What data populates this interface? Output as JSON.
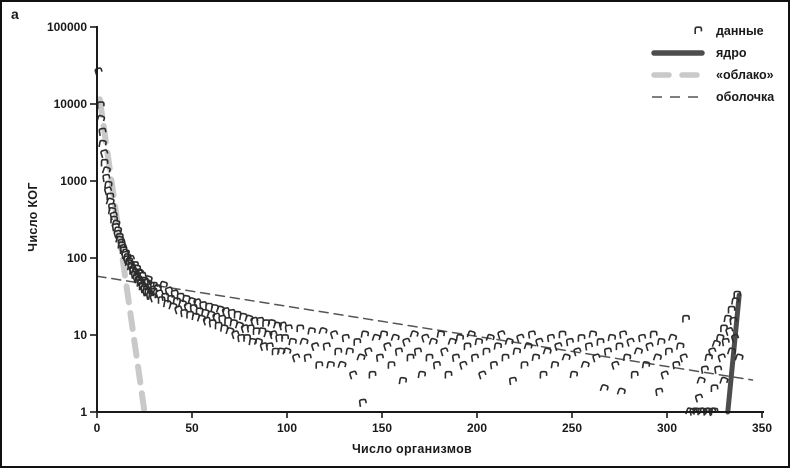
{
  "panel_label": "а",
  "legend": {
    "items": [
      {
        "label": "данные",
        "sample": "scatter-marker"
      },
      {
        "label": "ядро",
        "sample": "thick-solid-line"
      },
      {
        "label": "«облако»",
        "sample": "thick-dashed-line"
      },
      {
        "label": "оболочка",
        "sample": "thin-dashed-line"
      }
    ]
  },
  "chart_data": {
    "type": "scatter",
    "title": "",
    "xlabel": "Число организмов",
    "ylabel": "Число КОГ",
    "x_ticks": [
      0,
      50,
      100,
      150,
      200,
      250,
      300,
      350
    ],
    "y_ticks": [
      1,
      10,
      100,
      1000,
      10000,
      100000
    ],
    "xlim": [
      0,
      350
    ],
    "ylim": [
      1,
      100000
    ],
    "y_scale": "log",
    "grid": false,
    "legend_position": "top-right",
    "colors": {
      "marker": "#2d2d2d",
      "core": "#4d4d4d",
      "cloud": "#c9c9c9",
      "shell": "#555555",
      "axis": "#1a1a1a"
    },
    "series": [
      {
        "name": "данные",
        "type": "scatter",
        "points": [
          [
            1,
            26000
          ],
          [
            2,
            9500
          ],
          [
            2,
            6300
          ],
          [
            3,
            4300
          ],
          [
            3,
            3000
          ],
          [
            4,
            2250
          ],
          [
            4,
            1700
          ],
          [
            5,
            1350
          ],
          [
            5,
            1080
          ],
          [
            6,
            880
          ],
          [
            6,
            740
          ],
          [
            7,
            620
          ],
          [
            7,
            530
          ],
          [
            8,
            455
          ],
          [
            8,
            400
          ],
          [
            9,
            350
          ],
          [
            9,
            310
          ],
          [
            10,
            275
          ],
          [
            10,
            248
          ],
          [
            11,
            224
          ],
          [
            11,
            203
          ],
          [
            12,
            185
          ],
          [
            12,
            170
          ],
          [
            13,
            156
          ],
          [
            13,
            144
          ],
          [
            14,
            133
          ],
          [
            14,
            124
          ],
          [
            15,
            115
          ],
          [
            15,
            108
          ],
          [
            16,
            101
          ],
          [
            16,
            95
          ],
          [
            17,
            89
          ],
          [
            17,
            84
          ],
          [
            18,
            79
          ],
          [
            18,
            75
          ],
          [
            19,
            71
          ],
          [
            19,
            67
          ],
          [
            20,
            64
          ],
          [
            20,
            60
          ],
          [
            21,
            58
          ],
          [
            21,
            55
          ],
          [
            22,
            52
          ],
          [
            22,
            50
          ],
          [
            23,
            48
          ],
          [
            23,
            46
          ],
          [
            24,
            44
          ],
          [
            24,
            42
          ],
          [
            25,
            41
          ],
          [
            25,
            39
          ],
          [
            26,
            38
          ],
          [
            26,
            36
          ],
          [
            27,
            35
          ],
          [
            28,
            34
          ],
          [
            28,
            32
          ],
          [
            29,
            31
          ],
          [
            30,
            30
          ],
          [
            30,
            43
          ],
          [
            27,
            52
          ],
          [
            24,
            58
          ],
          [
            21,
            72
          ],
          [
            18,
            95
          ],
          [
            22,
            64
          ],
          [
            26,
            47
          ],
          [
            29,
            38
          ],
          [
            25,
            50
          ],
          [
            23,
            62
          ],
          [
            20,
            80
          ],
          [
            28,
            44
          ],
          [
            30,
            36
          ],
          [
            32,
            40
          ],
          [
            33,
            34
          ],
          [
            34,
            28
          ],
          [
            35,
            44
          ],
          [
            36,
            31
          ],
          [
            37,
            25
          ],
          [
            38,
            37
          ],
          [
            39,
            29
          ],
          [
            40,
            23
          ],
          [
            41,
            34
          ],
          [
            42,
            27
          ],
          [
            43,
            21
          ],
          [
            44,
            31
          ],
          [
            45,
            25
          ],
          [
            46,
            19
          ],
          [
            47,
            29
          ],
          [
            48,
            23
          ],
          [
            49,
            18
          ],
          [
            50,
            27
          ],
          [
            51,
            22
          ],
          [
            52,
            17
          ],
          [
            53,
            26
          ],
          [
            54,
            20
          ],
          [
            55,
            16
          ],
          [
            56,
            24
          ],
          [
            57,
            19
          ],
          [
            58,
            15
          ],
          [
            59,
            23
          ],
          [
            60,
            18
          ],
          [
            61,
            14
          ],
          [
            62,
            22
          ],
          [
            63,
            17
          ],
          [
            64,
            13
          ],
          [
            65,
            21
          ],
          [
            66,
            16
          ],
          [
            67,
            12
          ],
          [
            68,
            20
          ],
          [
            69,
            15
          ],
          [
            70,
            11
          ],
          [
            71,
            19
          ],
          [
            72,
            14
          ],
          [
            73,
            10
          ],
          [
            74,
            18
          ],
          [
            75,
            13
          ],
          [
            76,
            9
          ],
          [
            77,
            17
          ],
          [
            78,
            12
          ],
          [
            79,
            9
          ],
          [
            80,
            16
          ],
          [
            81,
            12
          ],
          [
            82,
            8
          ],
          [
            83,
            15
          ],
          [
            84,
            11
          ],
          [
            85,
            8
          ],
          [
            86,
            15
          ],
          [
            87,
            11
          ],
          [
            88,
            7
          ],
          [
            89,
            14
          ],
          [
            90,
            10
          ],
          [
            91,
            7
          ],
          [
            92,
            14
          ],
          [
            93,
            10
          ],
          [
            94,
            6
          ],
          [
            95,
            13
          ],
          [
            96,
            9
          ],
          [
            97,
            6
          ],
          [
            98,
            13
          ],
          [
            99,
            9
          ],
          [
            100,
            6
          ],
          [
            101,
            12
          ],
          [
            103,
            8
          ],
          [
            105,
            5
          ],
          [
            107,
            12
          ],
          [
            109,
            8
          ],
          [
            111,
            5
          ],
          [
            113,
            11
          ],
          [
            115,
            7
          ],
          [
            117,
            4
          ],
          [
            119,
            11
          ],
          [
            121,
            7
          ],
          [
            123,
            4
          ],
          [
            125,
            10
          ],
          [
            127,
            6
          ],
          [
            129,
            4
          ],
          [
            131,
            9
          ],
          [
            133,
            6
          ],
          [
            135,
            3
          ],
          [
            137,
            8
          ],
          [
            139,
            5
          ],
          [
            140,
            1.3
          ],
          [
            141,
            10
          ],
          [
            143,
            6
          ],
          [
            145,
            3
          ],
          [
            147,
            9
          ],
          [
            149,
            5
          ],
          [
            151,
            10
          ],
          [
            153,
            7
          ],
          [
            155,
            4
          ],
          [
            157,
            9
          ],
          [
            159,
            6
          ],
          [
            161,
            2.5
          ],
          [
            163,
            8
          ],
          [
            165,
            5
          ],
          [
            167,
            10
          ],
          [
            169,
            6
          ],
          [
            171,
            3
          ],
          [
            173,
            9
          ],
          [
            175,
            5
          ],
          [
            177,
            8
          ],
          [
            179,
            4
          ],
          [
            181,
            10
          ],
          [
            183,
            6
          ],
          [
            185,
            3
          ],
          [
            187,
            8
          ],
          [
            189,
            5
          ],
          [
            191,
            9
          ],
          [
            193,
            4
          ],
          [
            195,
            7
          ],
          [
            197,
            10
          ],
          [
            199,
            5
          ],
          [
            201,
            8
          ],
          [
            203,
            3
          ],
          [
            205,
            6
          ],
          [
            207,
            9
          ],
          [
            209,
            4
          ],
          [
            211,
            7
          ],
          [
            213,
            10
          ],
          [
            215,
            5
          ],
          [
            217,
            8
          ],
          [
            219,
            2.5
          ],
          [
            221,
            6
          ],
          [
            223,
            9
          ],
          [
            225,
            4
          ],
          [
            227,
            7
          ],
          [
            229,
            10
          ],
          [
            231,
            5
          ],
          [
            233,
            8
          ],
          [
            235,
            3
          ],
          [
            237,
            6
          ],
          [
            239,
            9
          ],
          [
            241,
            4
          ],
          [
            243,
            7
          ],
          [
            245,
            10
          ],
          [
            247,
            5
          ],
          [
            249,
            8
          ],
          [
            251,
            3
          ],
          [
            253,
            6
          ],
          [
            255,
            9
          ],
          [
            257,
            4
          ],
          [
            259,
            7
          ],
          [
            261,
            10
          ],
          [
            263,
            5
          ],
          [
            265,
            8
          ],
          [
            267,
            2
          ],
          [
            269,
            6
          ],
          [
            271,
            9
          ],
          [
            273,
            4
          ],
          [
            275,
            7
          ],
          [
            276,
            1.8
          ],
          [
            277,
            10
          ],
          [
            279,
            5
          ],
          [
            281,
            8
          ],
          [
            283,
            3
          ],
          [
            285,
            6
          ],
          [
            287,
            9
          ],
          [
            289,
            4
          ],
          [
            291,
            7
          ],
          [
            293,
            10
          ],
          [
            295,
            5
          ],
          [
            296,
            1.8
          ],
          [
            297,
            8
          ],
          [
            299,
            3
          ],
          [
            301,
            6
          ],
          [
            303,
            9
          ],
          [
            305,
            4
          ],
          [
            307,
            7
          ],
          [
            309,
            5
          ],
          [
            310,
            16
          ],
          [
            312,
            1
          ],
          [
            314,
            1
          ],
          [
            316,
            1
          ],
          [
            317,
            1.5
          ],
          [
            318,
            1
          ],
          [
            319,
            1
          ],
          [
            321,
            1
          ],
          [
            322,
            1
          ],
          [
            324,
            1
          ],
          [
            325,
            1
          ],
          [
            318,
            2.5
          ],
          [
            320,
            3.5
          ],
          [
            322,
            5
          ],
          [
            324,
            6
          ],
          [
            325,
            2
          ],
          [
            326,
            7.5
          ],
          [
            327,
            3.5
          ],
          [
            328,
            9
          ],
          [
            329,
            5
          ],
          [
            330,
            12
          ],
          [
            330,
            2.5
          ],
          [
            331,
            8
          ],
          [
            332,
            16
          ],
          [
            333,
            11
          ],
          [
            334,
            21
          ],
          [
            334,
            6
          ],
          [
            335,
            15
          ],
          [
            336,
            27
          ],
          [
            336,
            9
          ],
          [
            337,
            33
          ],
          [
            338,
            5
          ]
        ]
      },
      {
        "name": "ядро",
        "type": "line",
        "color": "#4d4d4d",
        "width": 5,
        "dash": "",
        "points": [
          [
            332,
            1
          ],
          [
            338,
            33
          ]
        ]
      },
      {
        "name": "«облако»",
        "type": "line",
        "color": "#c9c9c9",
        "width": 6,
        "dash": "16 11",
        "points": [
          [
            1.5,
            11500
          ],
          [
            25,
            1
          ]
        ]
      },
      {
        "name": "оболочка",
        "type": "line",
        "color": "#555555",
        "width": 1.5,
        "dash": "9 6",
        "points": [
          [
            0,
            58
          ],
          [
            345,
            2.6
          ]
        ]
      }
    ]
  }
}
